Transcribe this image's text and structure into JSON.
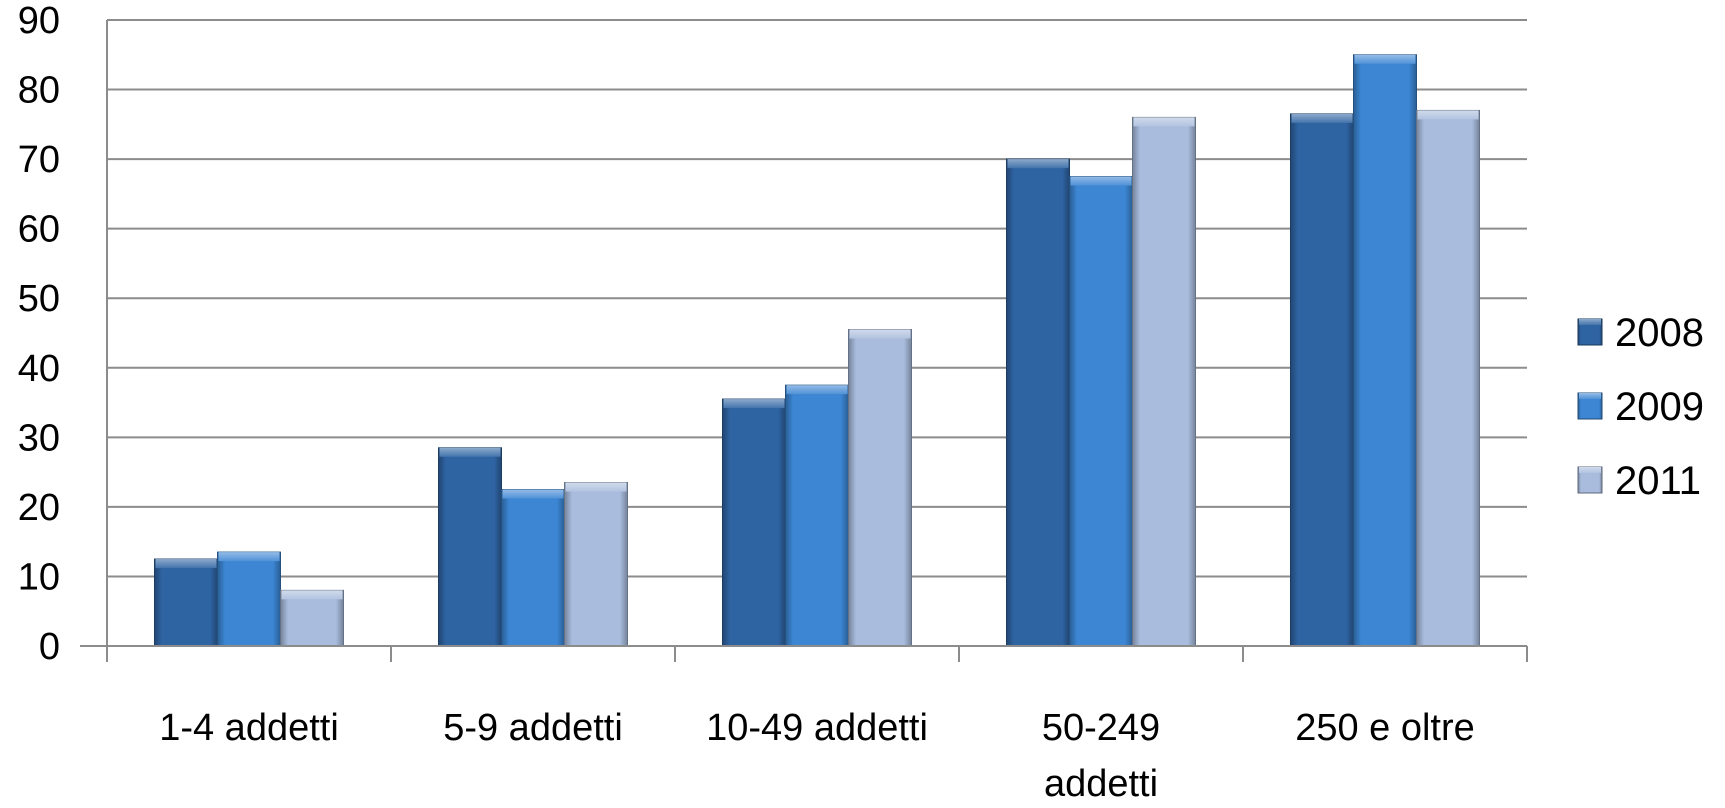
{
  "chart_data": {
    "type": "bar",
    "title": "",
    "xlabel": "",
    "ylabel": "",
    "categories": [
      [
        "1-4 addetti"
      ],
      [
        "5-9 addetti"
      ],
      [
        "10-49 addetti"
      ],
      [
        "50-249",
        "addetti"
      ],
      [
        "250 e oltre"
      ]
    ],
    "series": [
      {
        "name": "2008",
        "values": [
          12.5,
          28.5,
          35.5,
          70,
          76.5
        ],
        "color": "#2F64A3"
      },
      {
        "name": "2009",
        "values": [
          13.5,
          22.5,
          37.5,
          67.5,
          85
        ],
        "color": "#3C86D3"
      },
      {
        "name": "2011",
        "values": [
          8,
          23.5,
          45.5,
          76,
          77
        ],
        "color": "#A9BCDD"
      }
    ],
    "ylim": [
      0,
      90
    ],
    "yticks": [
      0,
      10,
      20,
      30,
      40,
      50,
      60,
      70,
      80,
      90
    ],
    "grid": true,
    "legend": "right"
  }
}
